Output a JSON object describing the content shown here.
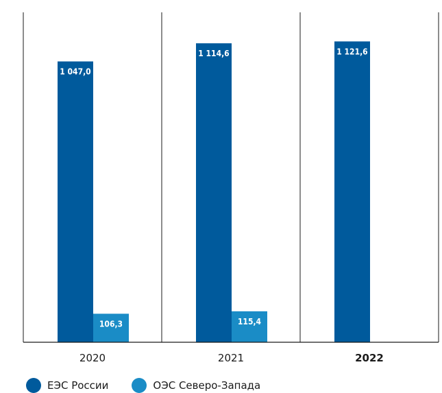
{
  "chart_data": {
    "type": "bar",
    "categories": [
      "2020",
      "2021",
      "2022"
    ],
    "category_bold": [
      false,
      false,
      true
    ],
    "series": [
      {
        "name": "ЕЭС России",
        "color": "#005a9c",
        "values": [
          1047.0,
          1114.6,
          1121.6
        ],
        "labels": [
          "1 047,0",
          "1 114,6",
          "1 121,6"
        ]
      },
      {
        "name": "ОЭС Северо-Запада",
        "color": "#1a8cc6",
        "values": [
          106.3,
          115.4,
          null
        ],
        "labels": [
          "106,3",
          "115,4",
          ""
        ]
      }
    ],
    "ylim": [
      0,
      1230
    ],
    "grid": false,
    "legend_position": "bottom-left"
  }
}
